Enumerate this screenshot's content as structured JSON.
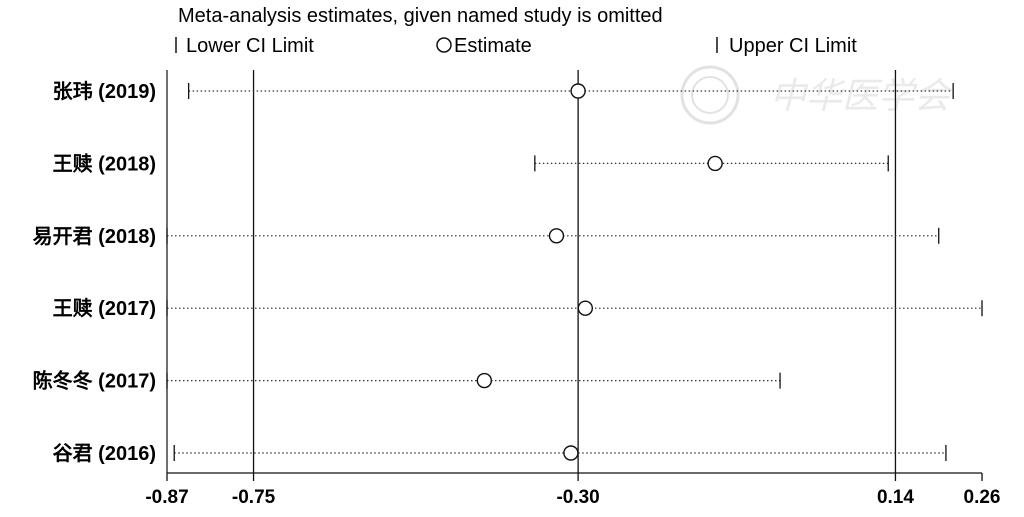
{
  "chart_data": {
    "type": "forest",
    "title": "Meta-analysis estimates, given named study is omitted",
    "legend": [
      {
        "symbol": "|",
        "label": "Lower CI Limit"
      },
      {
        "symbol": "○",
        "label": "Estimate"
      },
      {
        "symbol": "|",
        "label": "Upper CI Limit"
      }
    ],
    "xlim": [
      -0.87,
      0.26
    ],
    "xticks": [
      -0.87,
      -0.75,
      -0.3,
      0.14,
      0.26
    ],
    "xtick_labels": [
      "-0.87",
      "-0.75",
      "-0.30",
      "0.14",
      "0.26"
    ],
    "reference_lines": [
      -0.75,
      -0.3,
      0.14
    ],
    "studies": [
      {
        "label": "张玮 (2019)",
        "lower": -0.84,
        "estimate": -0.3,
        "upper": 0.22
      },
      {
        "label": "王赎 (2018)",
        "lower": -0.36,
        "estimate": -0.11,
        "upper": 0.13
      },
      {
        "label": "易开君 (2018)",
        "lower": -0.87,
        "estimate": -0.33,
        "upper": 0.2
      },
      {
        "label": "王赎 (2017)",
        "lower": -0.87,
        "estimate": -0.29,
        "upper": 0.26
      },
      {
        "label": "陈冬冬 (2017)",
        "lower": -0.87,
        "estimate": -0.43,
        "upper": -0.02
      },
      {
        "label": "谷君 (2016)",
        "lower": -0.86,
        "estimate": -0.31,
        "upper": 0.21
      }
    ]
  },
  "watermark": {
    "text": "中华医学会"
  }
}
